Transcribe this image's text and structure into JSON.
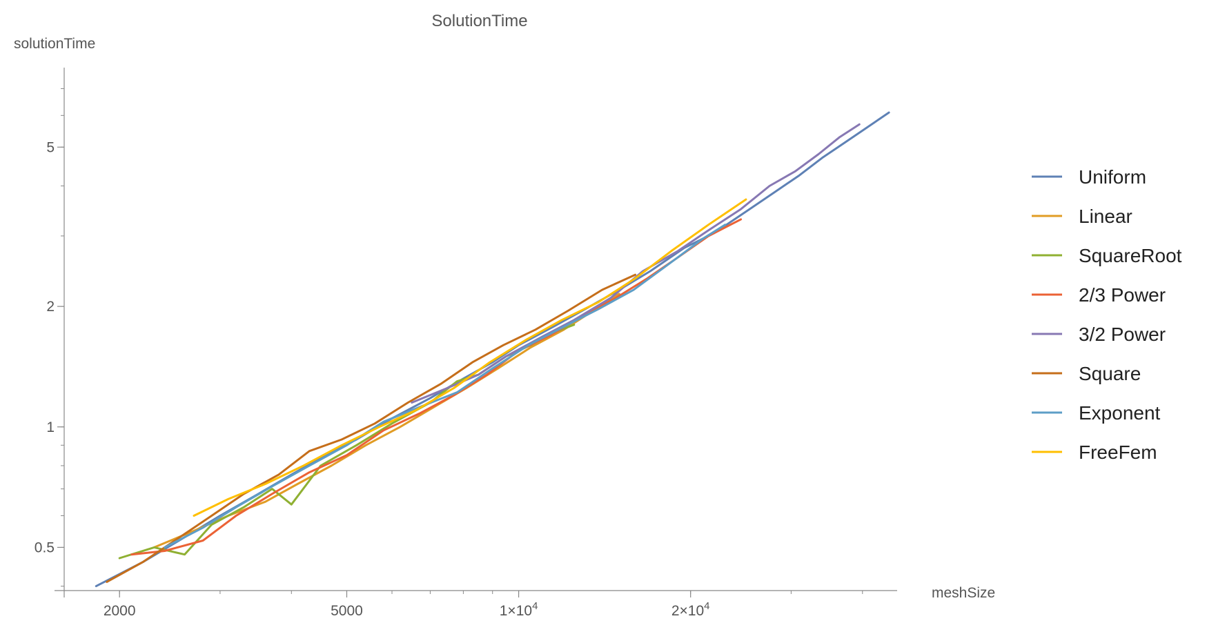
{
  "chart_data": {
    "type": "line",
    "title": "SolutionTime",
    "xlabel": "meshSize",
    "ylabel": "solutionTime",
    "x_scale": "log",
    "y_scale": "log",
    "xlim": [
      1600,
      46000
    ],
    "ylim": [
      0.39,
      7.9
    ],
    "x_ticks": [
      {
        "value": 2000,
        "label": "2000"
      },
      {
        "value": 5000,
        "label": "5000"
      },
      {
        "value": 10000,
        "label": "1×10",
        "exp": "4"
      },
      {
        "value": 20000,
        "label": "2×10",
        "exp": "4"
      }
    ],
    "y_ticks": [
      {
        "value": 0.5,
        "label": "0.5"
      },
      {
        "value": 1,
        "label": "1"
      },
      {
        "value": 2,
        "label": "2"
      },
      {
        "value": 5,
        "label": "5"
      }
    ],
    "grid": false,
    "legend_position": "right",
    "series": [
      {
        "name": "Uniform",
        "color": "#5E81B5",
        "x": [
          1820,
          2200,
          2600,
          3000,
          3500,
          4000,
          4600,
          5200,
          6000,
          7000,
          8000,
          9000,
          10000,
          11500,
          13000,
          15000,
          17000,
          19500,
          22000,
          25000,
          28000,
          31000,
          34000,
          37000,
          40000,
          43000,
          44500
        ],
        "y": [
          0.4,
          0.46,
          0.53,
          0.6,
          0.68,
          0.76,
          0.85,
          0.93,
          1.05,
          1.18,
          1.32,
          1.45,
          1.6,
          1.78,
          1.96,
          2.2,
          2.45,
          2.8,
          3.05,
          3.45,
          3.85,
          4.25,
          4.7,
          5.1,
          5.5,
          5.9,
          6.1
        ]
      },
      {
        "name": "Linear",
        "color": "#E19C24",
        "x": [
          2300,
          2700,
          3100,
          3600,
          4100,
          4700,
          5400,
          6200,
          7100,
          8100,
          9200,
          10500,
          12000,
          13500,
          15000
        ],
        "y": [
          0.5,
          0.55,
          0.6,
          0.65,
          0.72,
          0.8,
          0.9,
          1.0,
          1.12,
          1.25,
          1.4,
          1.58,
          1.75,
          1.95,
          2.15
        ]
      },
      {
        "name": "SquareRoot",
        "color": "#8FB032",
        "x": [
          2000,
          2300,
          2600,
          2900,
          3300,
          3700,
          4000,
          4500,
          5200,
          6000,
          7000,
          7800,
          8500,
          9500,
          10500,
          11500,
          12500
        ],
        "y": [
          0.47,
          0.5,
          0.48,
          0.57,
          0.63,
          0.7,
          0.64,
          0.8,
          0.9,
          1.02,
          1.15,
          1.3,
          1.35,
          1.5,
          1.6,
          1.72,
          1.8
        ]
      },
      {
        "name": "2/3 Power",
        "color": "#EB6235",
        "x": [
          2100,
          2400,
          2800,
          3200,
          3700,
          4300,
          5000,
          5800,
          6700,
          7700,
          8800,
          10000,
          11400,
          13000,
          14800,
          16800,
          19000,
          21500,
          24500
        ],
        "y": [
          0.48,
          0.49,
          0.52,
          0.6,
          0.68,
          0.77,
          0.85,
          0.98,
          1.08,
          1.2,
          1.35,
          1.55,
          1.7,
          1.9,
          2.1,
          2.35,
          2.65,
          3.0,
          3.3
        ]
      },
      {
        "name": "3/2 Power",
        "color": "#8778B3",
        "x": [
          6500,
          7500,
          8500,
          9500,
          11000,
          12500,
          14500,
          16500,
          19000,
          21500,
          24500,
          27500,
          30500,
          33500,
          36500,
          39500
        ],
        "y": [
          1.15,
          1.25,
          1.35,
          1.5,
          1.68,
          1.85,
          2.1,
          2.45,
          2.75,
          3.1,
          3.5,
          4.0,
          4.35,
          4.8,
          5.3,
          5.7
        ]
      },
      {
        "name": "Square",
        "color": "#C56E1A",
        "x": [
          1900,
          2200,
          2500,
          2900,
          3300,
          3800,
          4300,
          4900,
          5600,
          6400,
          7300,
          8300,
          9400,
          10700,
          12200,
          14000,
          16000
        ],
        "y": [
          0.41,
          0.46,
          0.52,
          0.6,
          0.68,
          0.76,
          0.87,
          0.93,
          1.02,
          1.15,
          1.28,
          1.45,
          1.6,
          1.75,
          1.95,
          2.2,
          2.4
        ]
      },
      {
        "name": "Exponent",
        "color": "#5D9EC7",
        "x": [
          2400,
          2800,
          3200,
          3700,
          4300,
          5000,
          5800,
          6700,
          7800,
          9000,
          10400,
          12000,
          13800,
          15900,
          18300,
          21000,
          23000
        ],
        "y": [
          0.5,
          0.56,
          0.63,
          0.71,
          0.8,
          0.9,
          1.03,
          1.12,
          1.22,
          1.4,
          1.6,
          1.78,
          1.97,
          2.2,
          2.55,
          2.95,
          3.2
        ]
      },
      {
        "name": "FreeFem",
        "color": "#FFBF00",
        "x": [
          2700,
          3100,
          3600,
          4200,
          4900,
          5700,
          6600,
          7700,
          8900,
          10300,
          11900,
          13800,
          16000,
          18500,
          21500,
          25000
        ],
        "y": [
          0.6,
          0.66,
          0.72,
          0.8,
          0.9,
          1.0,
          1.1,
          1.25,
          1.45,
          1.65,
          1.85,
          2.05,
          2.35,
          2.75,
          3.2,
          3.7
        ]
      }
    ]
  }
}
